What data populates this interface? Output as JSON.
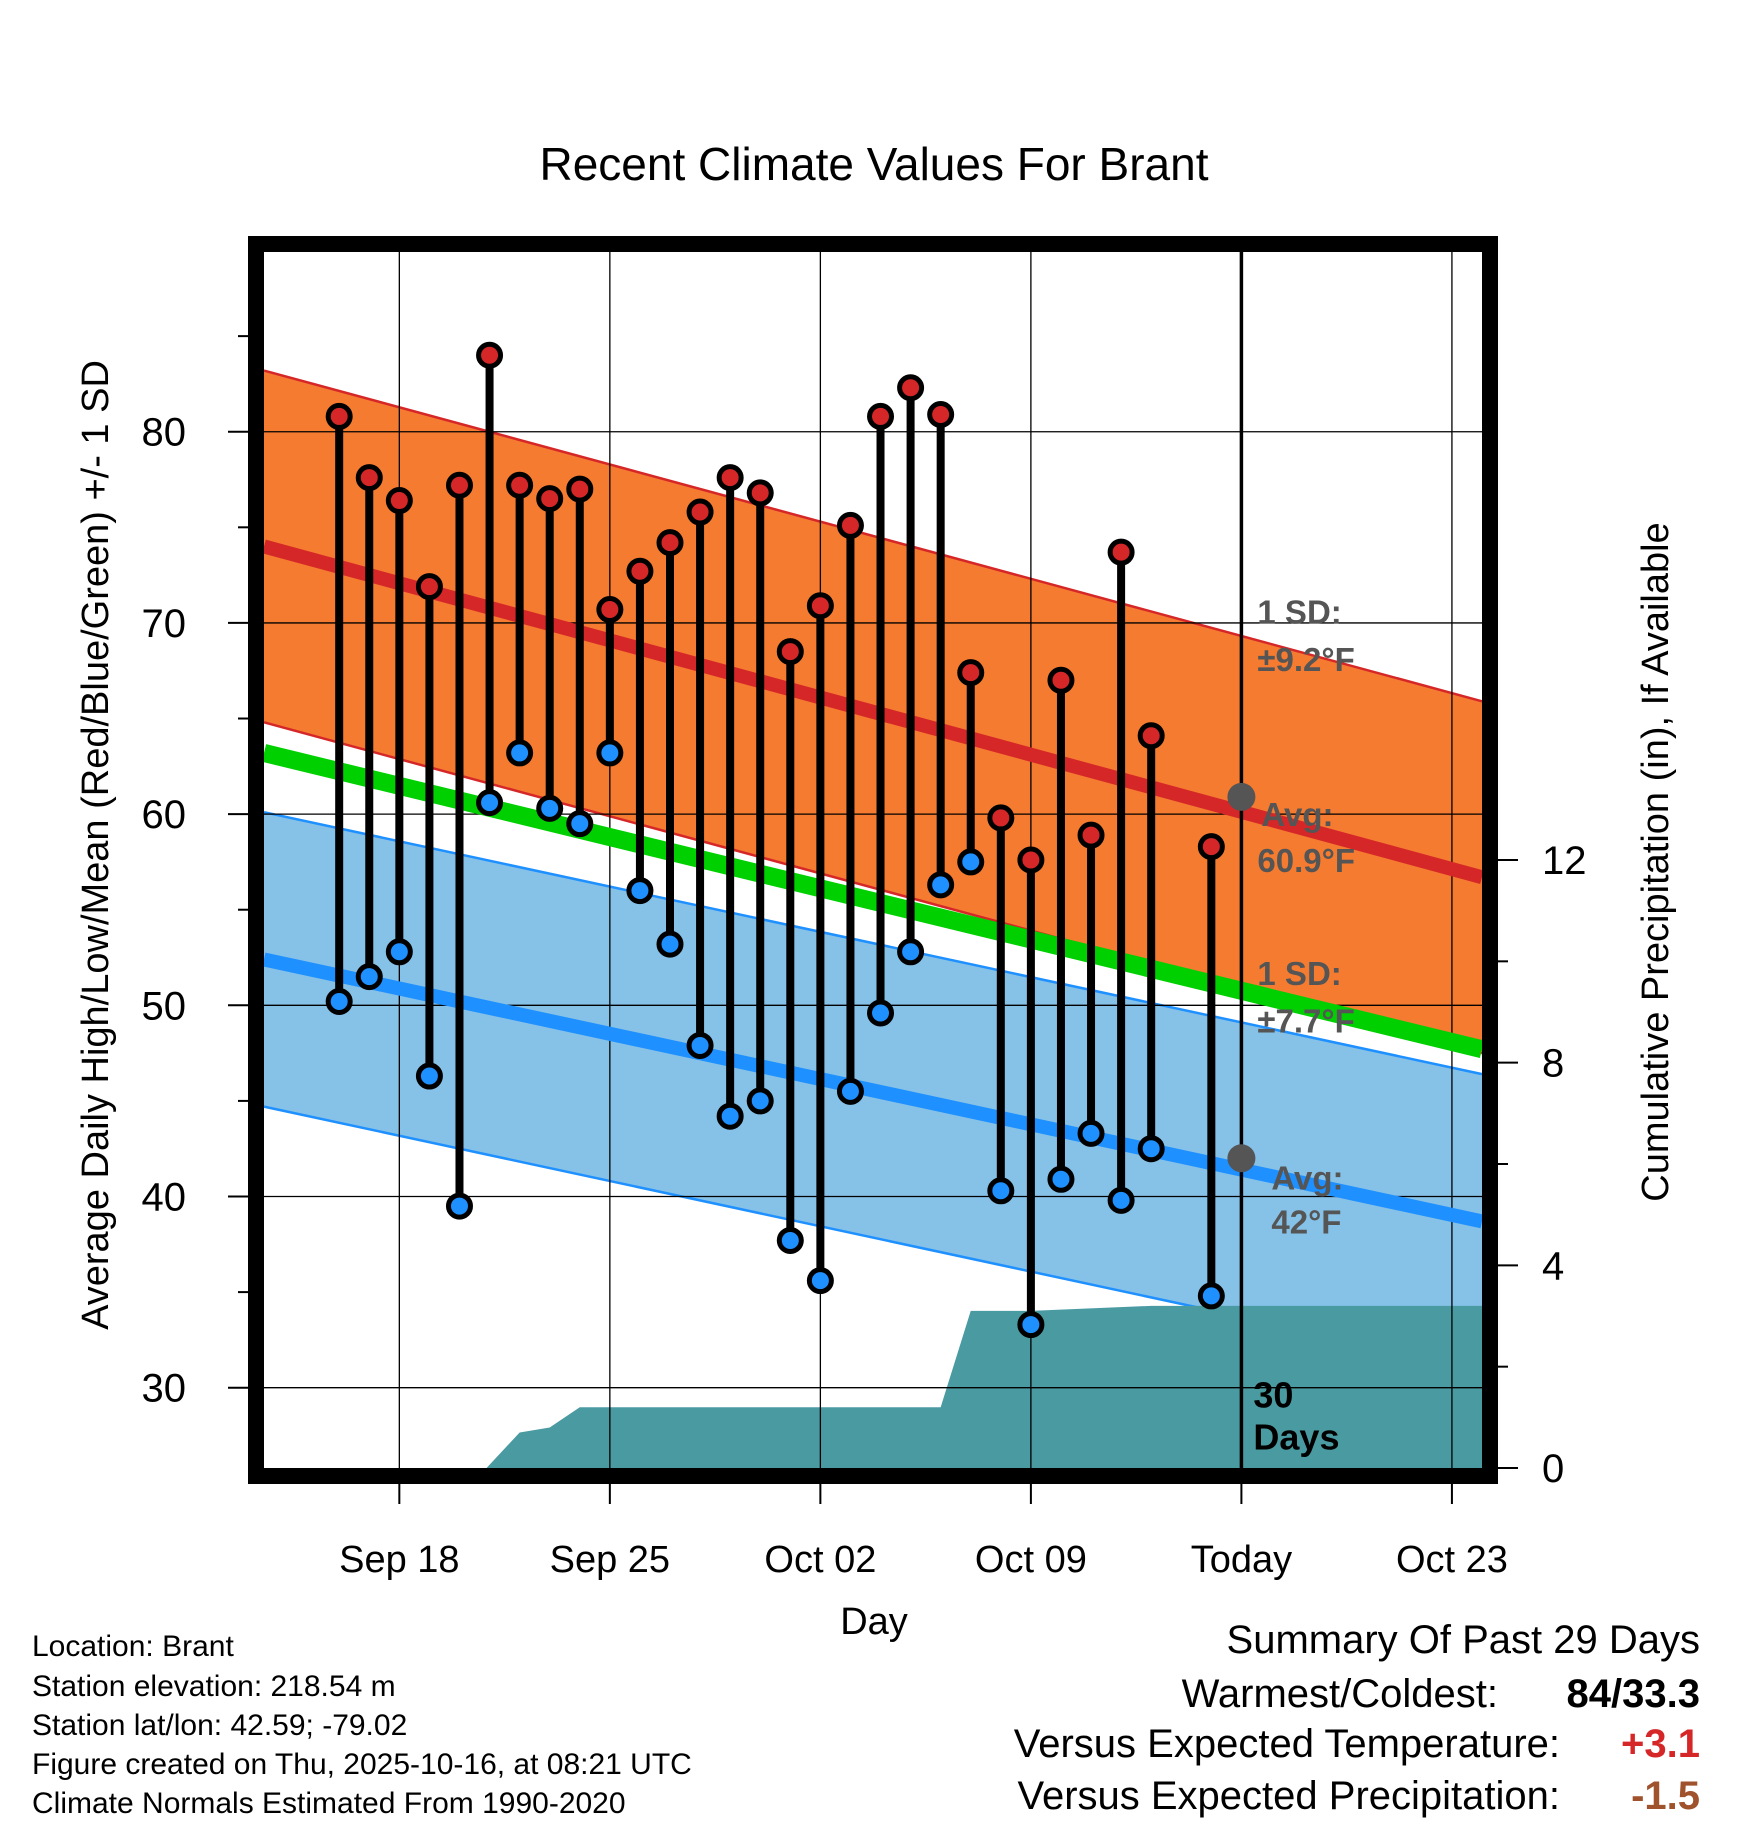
{
  "chart_data": {
    "type": "line",
    "title": "Recent Climate Values For Brant",
    "xlabel": "Day",
    "ylabel": "Average Daily High/Low/Mean (Red/Blue/Green) +/- 1 SD",
    "y2label": "Cumulative Precipitation (in), If Available",
    "ylim": [
      25.8,
      89.4
    ],
    "y2lim": [
      0,
      24
    ],
    "xlim": [
      -4.5,
      36
    ],
    "x_tick_labels": [
      {
        "day": 0,
        "label": "Sep 18"
      },
      {
        "day": 7,
        "label": "Sep 25"
      },
      {
        "day": 14,
        "label": "Oct 02"
      },
      {
        "day": 21,
        "label": "Oct 09"
      },
      {
        "day": 28,
        "label": "Today"
      },
      {
        "day": 35,
        "label": "Oct 23"
      }
    ],
    "y_ticks": [
      30,
      40,
      50,
      60,
      70,
      80
    ],
    "y2_ticks": [
      0,
      4,
      8,
      12
    ],
    "normals": {
      "high_mean": {
        "x": [
          -4.5,
          36
        ],
        "y": [
          74.0,
          56.7
        ]
      },
      "high_sd": 9.2,
      "low_mean": {
        "x": [
          -4.5,
          36
        ],
        "y": [
          52.4,
          38.7
        ]
      },
      "low_sd": 7.7,
      "avg_mean": {
        "x": [
          -4.5,
          36
        ],
        "y": [
          63.2,
          47.7
        ]
      }
    },
    "series": [
      {
        "name": "Daily High",
        "color": "#d62728",
        "days": [
          -2,
          -1,
          0,
          1,
          2,
          3,
          4,
          5,
          6,
          7,
          8,
          9,
          10,
          11,
          12,
          13,
          14,
          15,
          16,
          17,
          18,
          19,
          20,
          21,
          22,
          23,
          24,
          25,
          27
        ],
        "values": [
          80.8,
          77.6,
          76.4,
          71.9,
          77.2,
          84.0,
          77.2,
          76.5,
          77.0,
          70.7,
          72.7,
          74.2,
          75.8,
          77.6,
          76.8,
          68.5,
          70.9,
          75.1,
          80.8,
          82.3,
          80.9,
          67.4,
          59.8,
          57.6,
          67.0,
          58.9,
          73.7,
          64.1,
          58.3
        ]
      },
      {
        "name": "Daily Low",
        "color": "#1e90ff",
        "days": [
          -2,
          -1,
          0,
          1,
          2,
          3,
          4,
          5,
          6,
          7,
          8,
          9,
          10,
          11,
          12,
          13,
          14,
          15,
          16,
          17,
          18,
          19,
          20,
          21,
          22,
          23,
          24,
          25,
          27
        ],
        "values": [
          50.2,
          51.5,
          52.8,
          46.3,
          39.5,
          60.6,
          63.2,
          60.3,
          59.5,
          63.2,
          56.0,
          53.2,
          47.9,
          44.2,
          45.0,
          37.7,
          35.6,
          45.5,
          49.6,
          52.8,
          56.3,
          57.5,
          40.3,
          33.3,
          40.9,
          43.3,
          39.8,
          42.5,
          34.8
        ]
      },
      {
        "name": "Cumulative Precipitation",
        "color": "#4a9aa1",
        "x": [
          -4.5,
          2.9,
          4.0,
          5.0,
          6.0,
          9.8,
          14.0,
          18.0,
          19.0,
          21.0,
          25.0,
          28.0,
          36.0
        ],
        "values": [
          0,
          0,
          0.7,
          0.8,
          1.2,
          1.2,
          1.2,
          1.2,
          3.1,
          3.1,
          3.2,
          3.2,
          3.2
        ]
      }
    ],
    "annotations": {
      "high_sd_label_1": "1 SD:",
      "high_sd_label_2": "±9.2°F",
      "high_avg_label_1": "Avg:",
      "high_avg_label_2": "60.9°F",
      "low_sd_label_1": "1 SD:",
      "low_sd_label_2": "±7.7°F",
      "low_avg_label_1": "Avg:",
      "low_avg_label_2": "42°F",
      "days_label_1": "30",
      "days_label_2": "Days",
      "high_avg_value": 60.9,
      "low_avg_value": 42.0
    }
  },
  "info": {
    "location": "Location: Brant",
    "elevation": "Station elevation: 218.54 m",
    "latlon": "Station lat/lon: 42.59; -79.02",
    "created": "Figure created on Thu, 2025-10-16, at 08:21 UTC",
    "normals": "Climate Normals Estimated From 1990-2020"
  },
  "summary": {
    "title": "Summary Of Past 29 Days",
    "warmest_label": "Warmest/Coldest:",
    "warmest_value": "84/33.3",
    "temp_label": "Versus Expected Temperature:",
    "temp_value": "+3.1",
    "temp_color": "#d62728",
    "precip_label": "Versus Expected Precipitation:",
    "precip_value": "-1.5",
    "precip_color": "#a0522d"
  }
}
